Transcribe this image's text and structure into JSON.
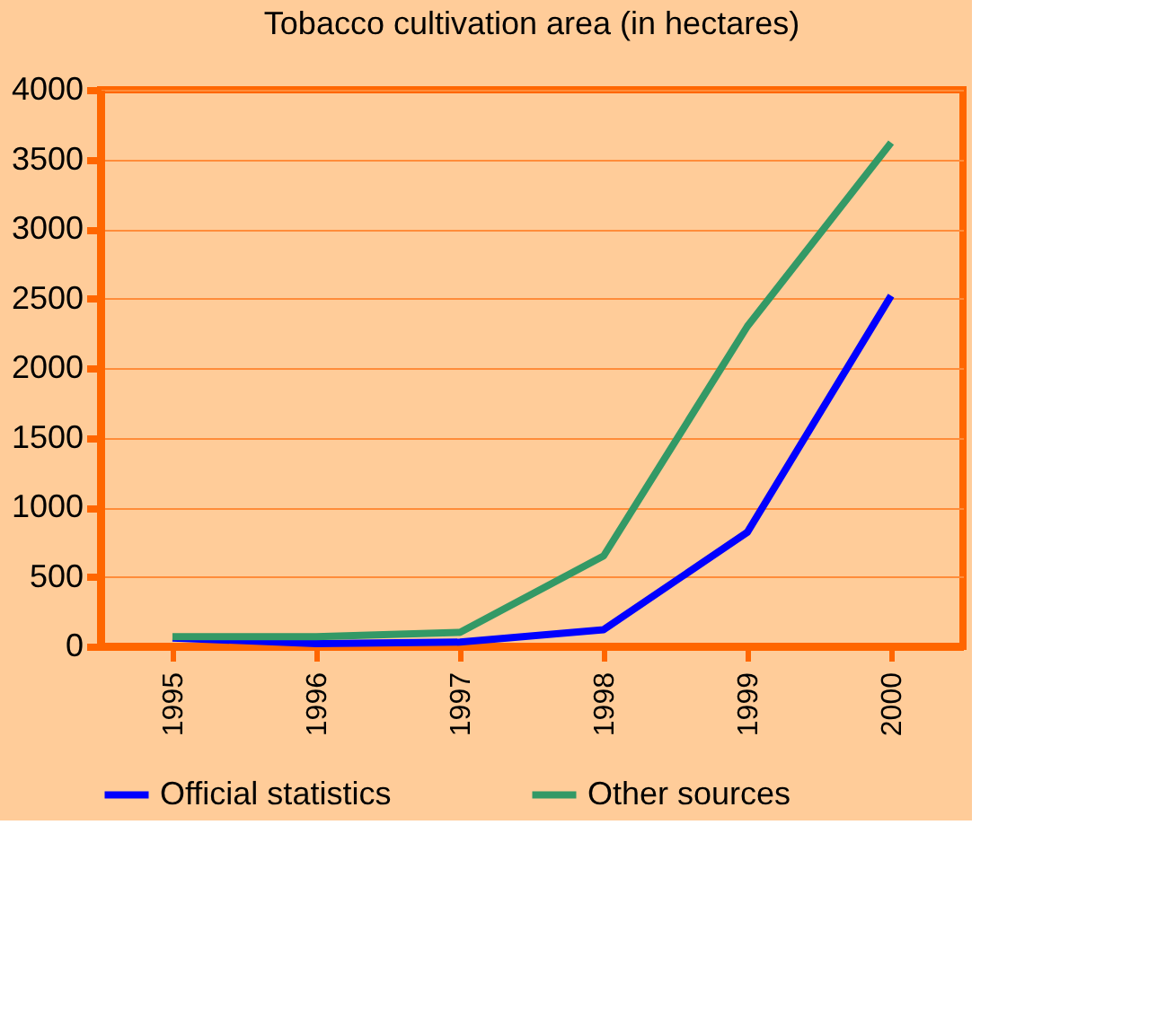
{
  "chart_data": {
    "type": "line",
    "title": "Tobacco cultivation area (in hectares)",
    "categories": [
      "1995",
      "1996",
      "1997",
      "1998",
      "1999",
      "2000"
    ],
    "series": [
      {
        "name": "Official statistics",
        "color": "#0000ff",
        "values": [
          60,
          20,
          30,
          120,
          820,
          2520
        ]
      },
      {
        "name": "Other sources",
        "color": "#339966",
        "values": [
          70,
          70,
          100,
          650,
          2300,
          3620
        ]
      }
    ],
    "ylim": [
      0,
      4000
    ],
    "yticks": [
      0,
      500,
      1000,
      1500,
      2000,
      2500,
      3000,
      3500,
      4000
    ],
    "grid": "y",
    "legend": "bottom",
    "marker": "none",
    "line_style": "solid"
  }
}
